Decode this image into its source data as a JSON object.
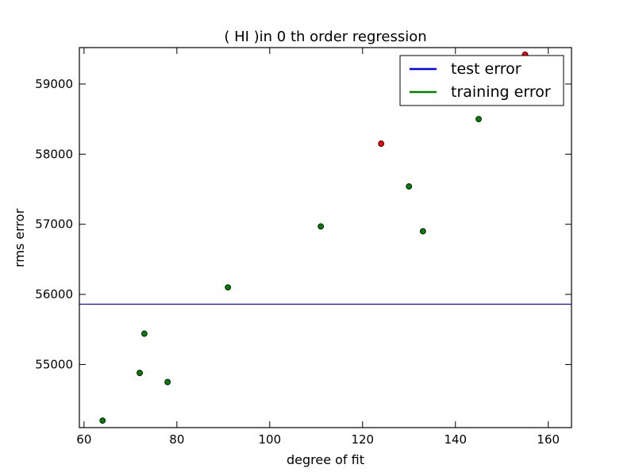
{
  "chart_data": {
    "type": "scatter",
    "title": "(  HI  )in 0 th order regression",
    "xlabel": "degree of fit",
    "ylabel": "rms error",
    "xlim": [
      59,
      165
    ],
    "ylim": [
      54100,
      59520
    ],
    "xticks": [
      60,
      80,
      100,
      120,
      140,
      160
    ],
    "yticks": [
      55000,
      56000,
      57000,
      58000,
      59000
    ],
    "grid": false,
    "legend_position": "top-right",
    "series": [
      {
        "name": "test error",
        "kind": "line",
        "color": "#0000ff",
        "y": 55860
      },
      {
        "name": "training error",
        "kind": "line",
        "color": "#008000"
      }
    ],
    "points": [
      {
        "x": 64,
        "y": 54200,
        "color": "#008000"
      },
      {
        "x": 72,
        "y": 54880,
        "color": "#008000"
      },
      {
        "x": 73,
        "y": 55440,
        "color": "#008000"
      },
      {
        "x": 78,
        "y": 54750,
        "color": "#008000"
      },
      {
        "x": 91,
        "y": 56100,
        "color": "#008000"
      },
      {
        "x": 111,
        "y": 56970,
        "color": "#008000"
      },
      {
        "x": 124,
        "y": 58150,
        "color": "#ff0000"
      },
      {
        "x": 130,
        "y": 57540,
        "color": "#008000"
      },
      {
        "x": 133,
        "y": 56900,
        "color": "#008000"
      },
      {
        "x": 145,
        "y": 58500,
        "color": "#008000"
      },
      {
        "x": 155,
        "y": 59420,
        "color": "#ff0000"
      }
    ]
  }
}
